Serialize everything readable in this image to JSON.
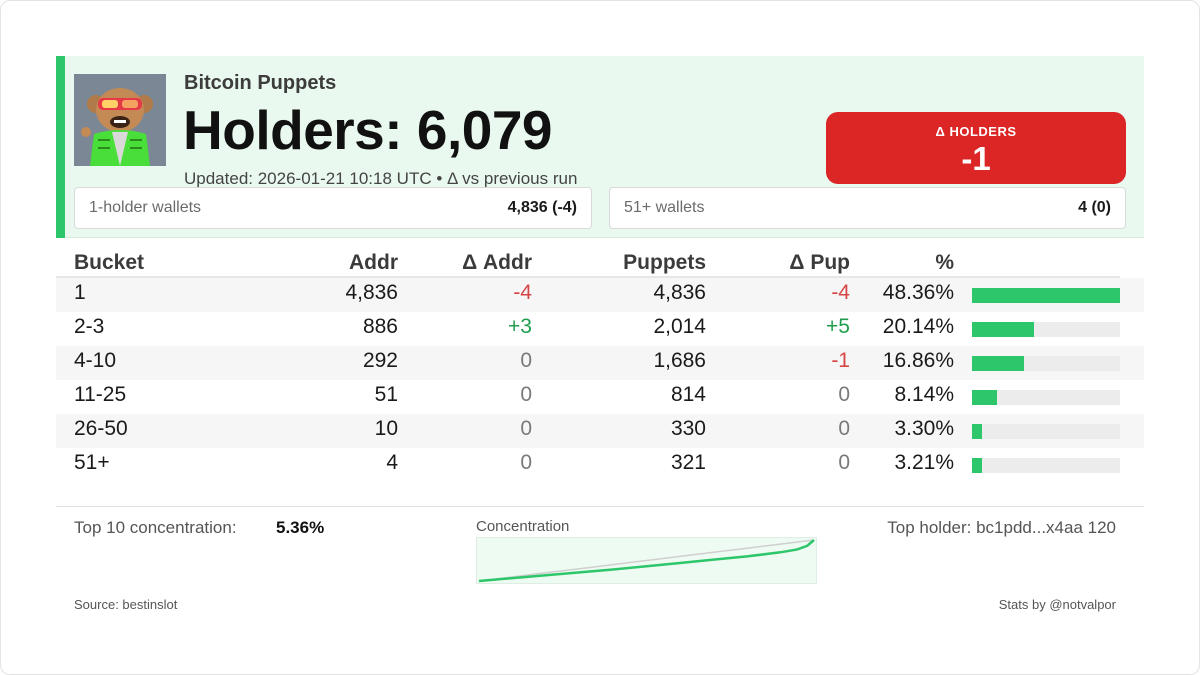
{
  "header": {
    "collection_name": "Bitcoin Puppets",
    "holders_title": "Holders: 6,079",
    "updated": "Updated: 2026-01-21 10:18 UTC • Δ vs previous run",
    "delta_label": "Δ HOLDERS",
    "delta_value": "-1",
    "accent_color": "#2ec66a",
    "delta_color": "#dc2626"
  },
  "summary": {
    "one_holder": {
      "label": "1-holder wallets",
      "value": "4,836 (-4)"
    },
    "fifty_one_plus": {
      "label": "51+ wallets",
      "value": "4 (0)"
    }
  },
  "table": {
    "headers": {
      "bucket": "Bucket",
      "addr": "Addr",
      "d_addr": "Δ Addr",
      "puppets": "Puppets",
      "d_pup": "Δ Pup",
      "pct": "%"
    },
    "rows": [
      {
        "bucket": "1",
        "addr": "4,836",
        "d_addr": "-4",
        "puppets": "4,836",
        "d_pup": "-4",
        "pct": "48.36%",
        "share": 48.36
      },
      {
        "bucket": "2-3",
        "addr": "886",
        "d_addr": "+3",
        "puppets": "2,014",
        "d_pup": "+5",
        "pct": "20.14%",
        "share": 20.14
      },
      {
        "bucket": "4-10",
        "addr": "292",
        "d_addr": "0",
        "puppets": "1,686",
        "d_pup": "-1",
        "pct": "16.86%",
        "share": 16.86
      },
      {
        "bucket": "11-25",
        "addr": "51",
        "d_addr": "0",
        "puppets": "814",
        "d_pup": "0",
        "pct": "8.14%",
        "share": 8.14
      },
      {
        "bucket": "26-50",
        "addr": "10",
        "d_addr": "0",
        "puppets": "330",
        "d_pup": "0",
        "pct": "3.30%",
        "share": 3.3
      },
      {
        "bucket": "51+",
        "addr": "4",
        "d_addr": "0",
        "puppets": "321",
        "d_pup": "0",
        "pct": "3.21%",
        "share": 3.21
      }
    ]
  },
  "footer": {
    "top10_label": "Top 10 concentration:",
    "top10_value": "5.36%",
    "concentration_label": "Concentration",
    "top_holder": "Top holder: bc1pdd...x4aa 120",
    "source": "Source: bestinslot",
    "credit": "Stats by @notvalpor"
  },
  "chart_data": {
    "type": "line",
    "title": "Concentration",
    "x": [
      0,
      0.1,
      0.2,
      0.3,
      0.4,
      0.5,
      0.6,
      0.7,
      0.8,
      0.9,
      0.95,
      0.98,
      1.0
    ],
    "series": [
      {
        "name": "cumulative share",
        "values": [
          0,
          0.07,
          0.14,
          0.21,
          0.28,
          0.36,
          0.44,
          0.52,
          0.6,
          0.7,
          0.77,
          0.86,
          1.0
        ]
      },
      {
        "name": "equality",
        "values": [
          0,
          0.1,
          0.2,
          0.3,
          0.4,
          0.5,
          0.6,
          0.7,
          0.8,
          0.9,
          0.95,
          0.98,
          1.0
        ]
      }
    ],
    "ylim": [
      0,
      1
    ]
  }
}
